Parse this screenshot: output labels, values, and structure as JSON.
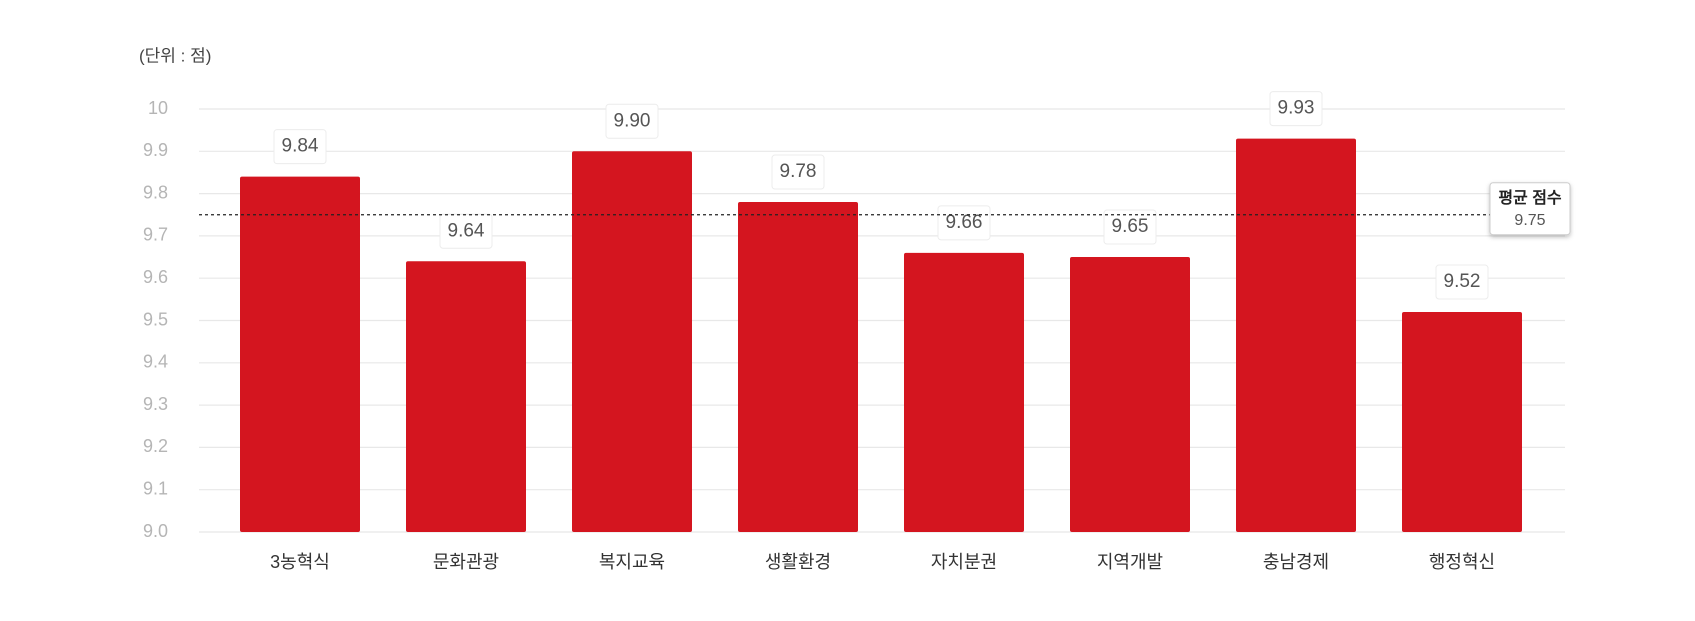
{
  "chart_data": {
    "type": "bar",
    "unit_label": "(단위 : 점)",
    "categories": [
      "3농혁식",
      "문화관광",
      "복지교육",
      "생활환경",
      "자치분권",
      "지역개발",
      "충남경제",
      "행정혁신"
    ],
    "values": [
      9.84,
      9.64,
      9.9,
      9.78,
      9.66,
      9.65,
      9.93,
      9.52
    ],
    "value_labels": [
      "9.84",
      "9.64",
      "9.90",
      "9.78",
      "9.66",
      "9.65",
      "9.93",
      "9.52"
    ],
    "color": "#d4151f",
    "ylim": [
      9,
      10
    ],
    "yticks": [
      {
        "value": 9,
        "label": "9.0"
      },
      9.1,
      9.2,
      9.3,
      9.4,
      9.5,
      9.6,
      9.7,
      9.8,
      9.9,
      10
    ],
    "grid": true,
    "average": {
      "label": "평균 점수",
      "value": 9.75
    }
  }
}
